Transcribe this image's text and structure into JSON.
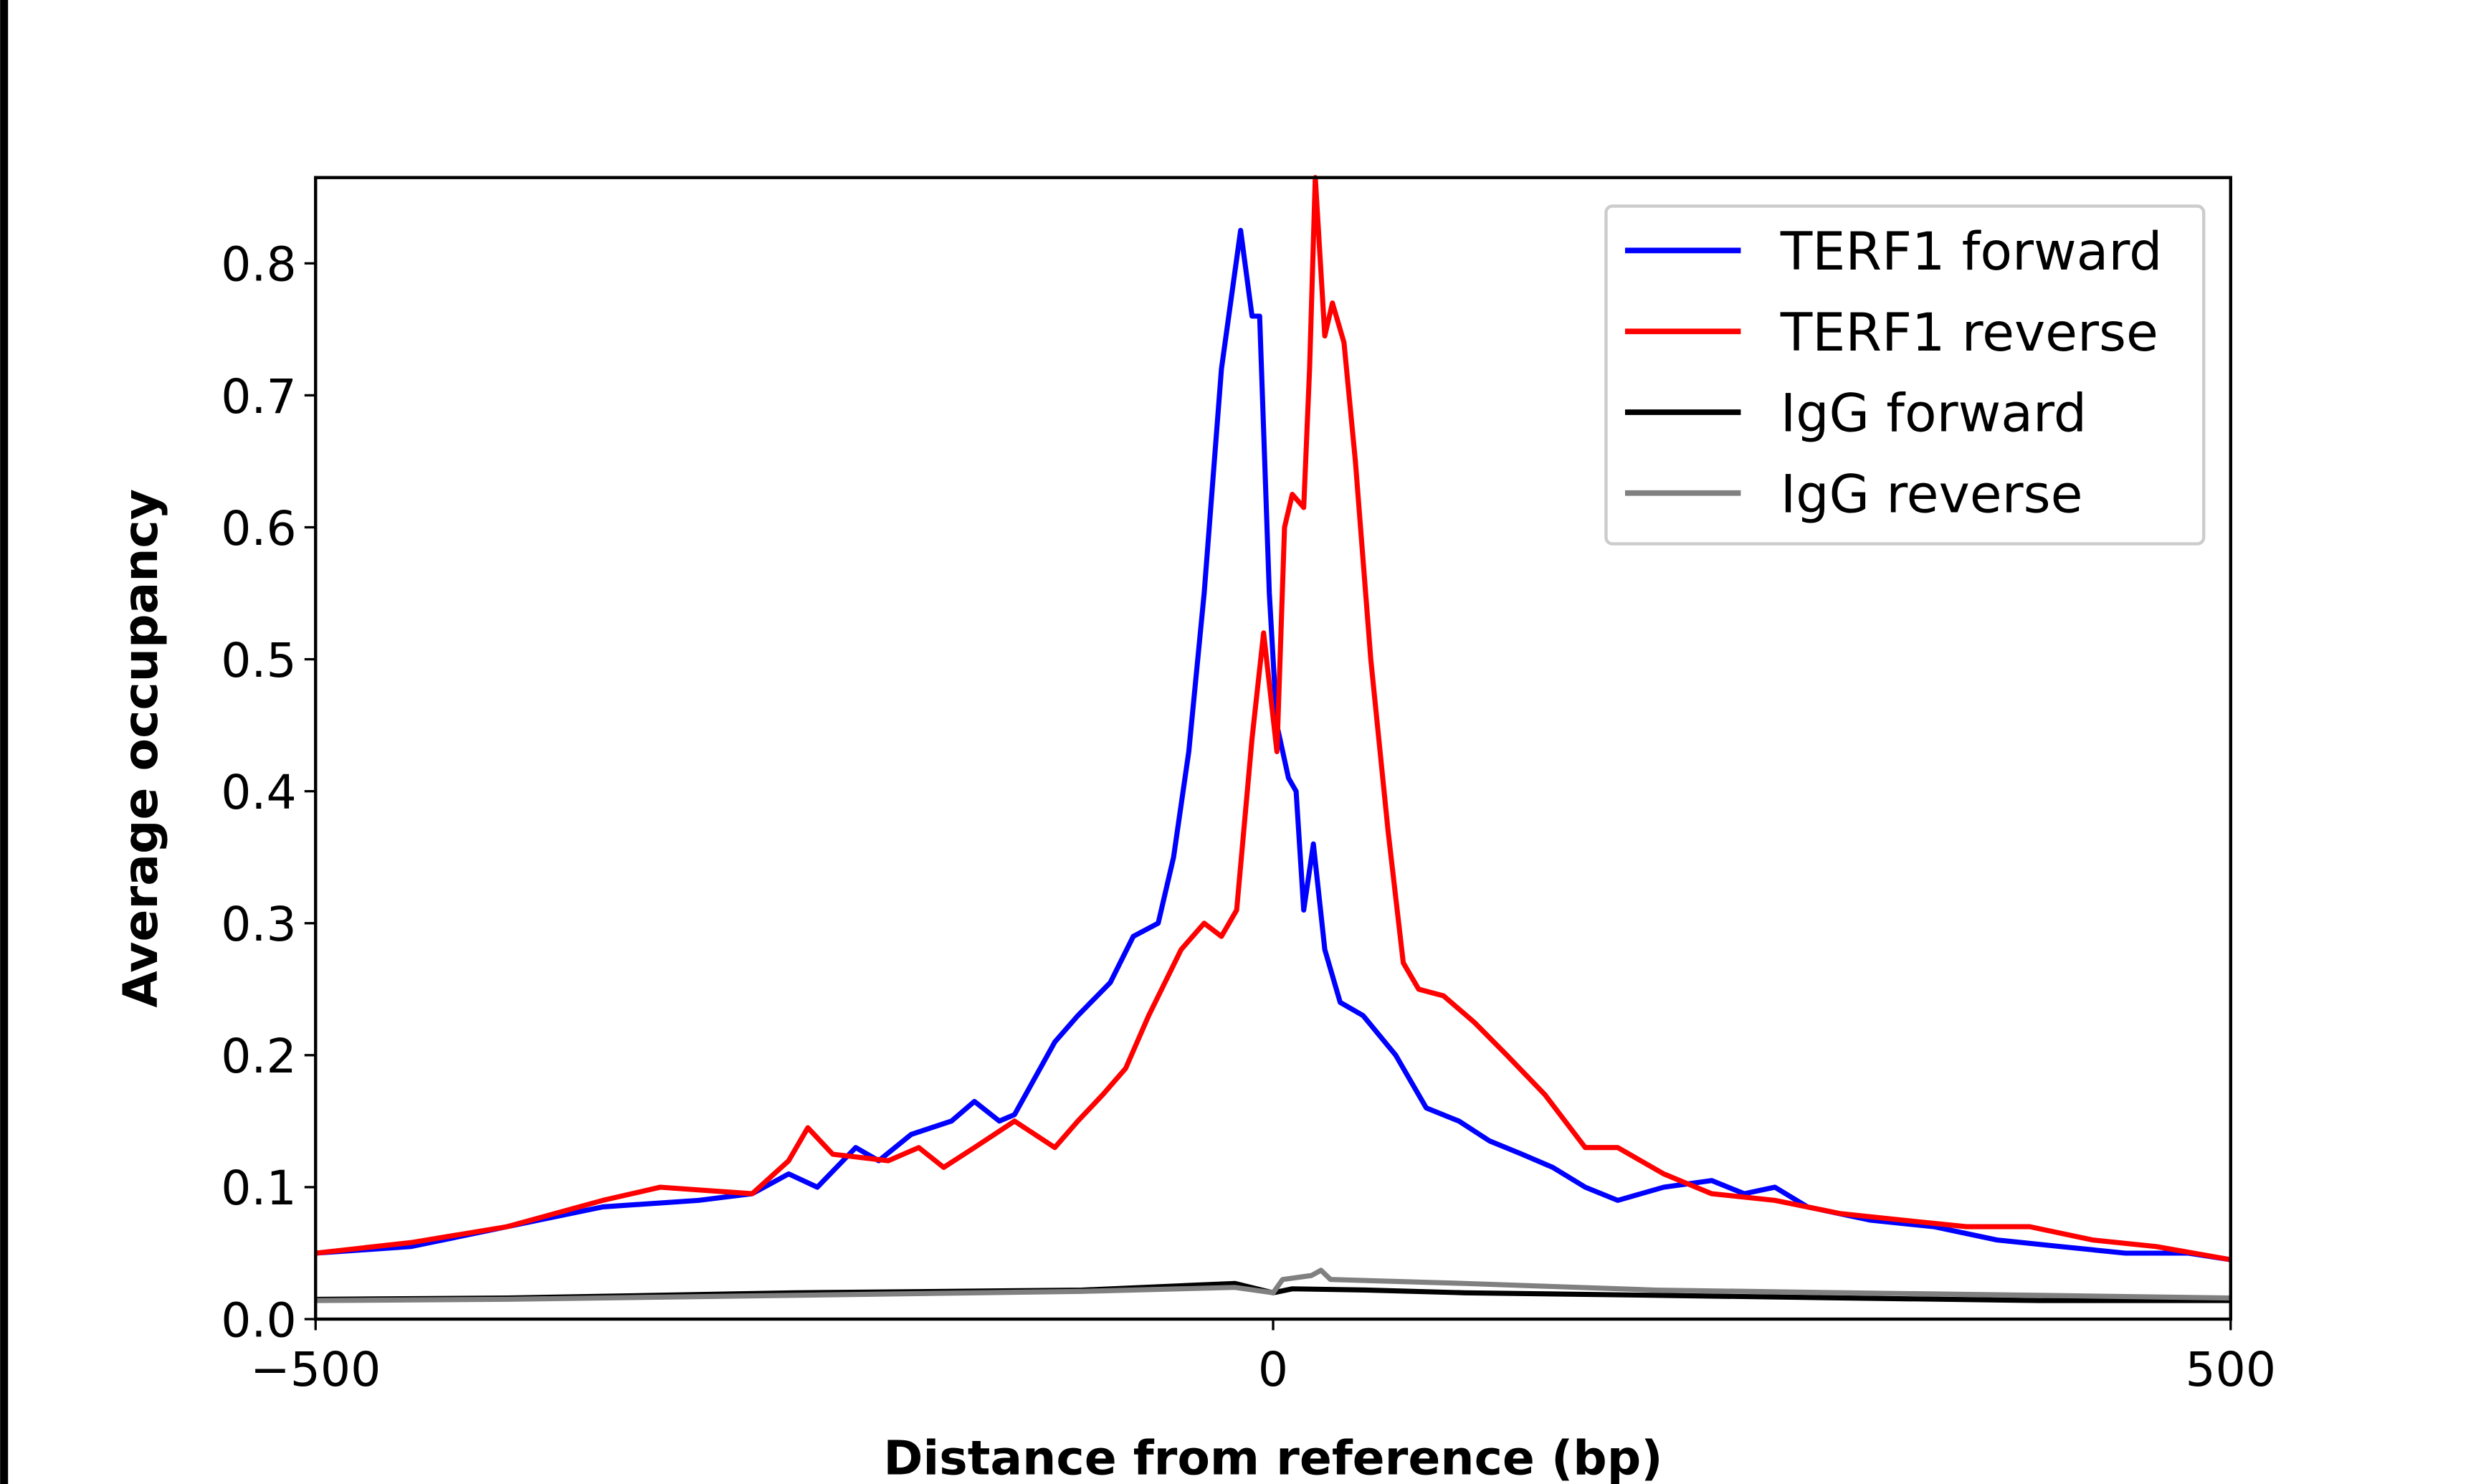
{
  "chart_data": {
    "type": "line",
    "title": "",
    "xlabel": "Distance from reference (bp)",
    "ylabel": "Average occupancy",
    "xlim": [
      -500,
      500
    ],
    "ylim": [
      0,
      0.865
    ],
    "xticks": [
      -500,
      0,
      500
    ],
    "xtick_labels": [
      "−500",
      "0",
      "500"
    ],
    "yticks": [
      0.0,
      0.1,
      0.2,
      0.3,
      0.4,
      0.5,
      0.6,
      0.7,
      0.8
    ],
    "ytick_labels": [
      "0.0",
      "0.1",
      "0.2",
      "0.3",
      "0.4",
      "0.5",
      "0.6",
      "0.7",
      "0.8"
    ],
    "grid": false,
    "legend_position": "top-right",
    "series": [
      {
        "name": "TERF1 forward",
        "color": "#0000ff",
        "x": [
          -500,
          -450,
          -400,
          -350,
          -300,
          -272,
          -253,
          -238,
          -218,
          -206,
          -189,
          -168,
          -156,
          -143,
          -135,
          -114,
          -102,
          -85,
          -73,
          -60,
          -52,
          -44,
          -36,
          -27,
          -17,
          -11,
          -7,
          -2,
          2,
          8,
          12,
          16,
          21,
          27,
          35,
          47,
          64,
          80,
          97,
          113,
          130,
          146,
          163,
          180,
          204,
          229,
          246,
          262,
          279,
          312,
          345,
          378,
          411,
          445,
          478,
          500
        ],
        "y": [
          0.05,
          0.055,
          0.07,
          0.085,
          0.09,
          0.095,
          0.11,
          0.1,
          0.13,
          0.12,
          0.14,
          0.15,
          0.165,
          0.15,
          0.155,
          0.21,
          0.23,
          0.255,
          0.29,
          0.3,
          0.35,
          0.43,
          0.55,
          0.72,
          0.825,
          0.76,
          0.76,
          0.55,
          0.45,
          0.41,
          0.4,
          0.31,
          0.36,
          0.28,
          0.24,
          0.23,
          0.2,
          0.16,
          0.15,
          0.135,
          0.125,
          0.115,
          0.1,
          0.09,
          0.1,
          0.105,
          0.095,
          0.1,
          0.085,
          0.075,
          0.07,
          0.06,
          0.055,
          0.05,
          0.05,
          0.045
        ]
      },
      {
        "name": "TERF1 reverse",
        "color": "#ff0000",
        "x": [
          -500,
          -450,
          -400,
          -350,
          -320,
          -272,
          -253,
          -243,
          -230,
          -201,
          -185,
          -172,
          -156,
          -135,
          -114,
          -102,
          -89,
          -77,
          -65,
          -48,
          -36,
          -27,
          -19,
          -11,
          -5,
          2,
          6,
          10,
          16,
          19,
          22,
          27,
          31,
          37,
          43,
          51,
          60,
          68,
          76,
          89,
          105,
          122,
          142,
          163,
          180,
          204,
          229,
          262,
          296,
          329,
          362,
          395,
          428,
          461,
          500
        ],
        "y": [
          0.05,
          0.058,
          0.07,
          0.09,
          0.1,
          0.095,
          0.12,
          0.145,
          0.125,
          0.12,
          0.13,
          0.115,
          0.13,
          0.15,
          0.13,
          0.15,
          0.17,
          0.19,
          0.23,
          0.28,
          0.3,
          0.29,
          0.31,
          0.44,
          0.52,
          0.43,
          0.6,
          0.625,
          0.615,
          0.72,
          0.865,
          0.745,
          0.77,
          0.74,
          0.65,
          0.5,
          0.37,
          0.27,
          0.25,
          0.245,
          0.225,
          0.2,
          0.17,
          0.13,
          0.13,
          0.11,
          0.095,
          0.09,
          0.08,
          0.075,
          0.07,
          0.07,
          0.06,
          0.055,
          0.045
        ]
      },
      {
        "name": "IgG forward",
        "color": "#000000",
        "x": [
          -500,
          -400,
          -250,
          -100,
          -20,
          0,
          10,
          50,
          100,
          200,
          300,
          400,
          500
        ],
        "y": [
          0.015,
          0.016,
          0.02,
          0.022,
          0.027,
          0.02,
          0.023,
          0.022,
          0.02,
          0.018,
          0.016,
          0.014,
          0.014
        ]
      },
      {
        "name": "IgG reverse",
        "color": "#808080",
        "x": [
          -500,
          -400,
          -250,
          -100,
          -20,
          0,
          5,
          20,
          25,
          30,
          100,
          200,
          300,
          400,
          500
        ],
        "y": [
          0.014,
          0.015,
          0.018,
          0.021,
          0.024,
          0.02,
          0.03,
          0.033,
          0.037,
          0.03,
          0.027,
          0.022,
          0.02,
          0.018,
          0.016
        ]
      }
    ]
  }
}
